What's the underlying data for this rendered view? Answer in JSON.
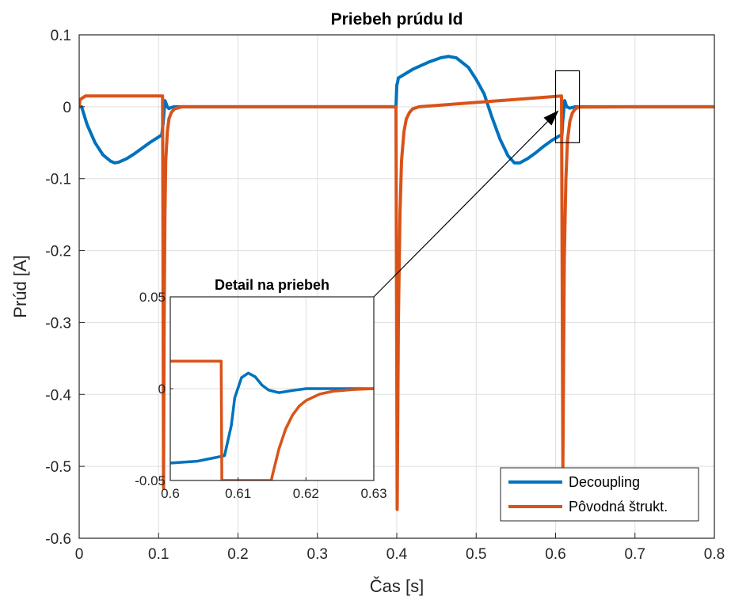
{
  "chart_data": [
    {
      "type": "line",
      "title": "Priebeh prúdu Id",
      "xlabel": "Čas [s]",
      "ylabel": "Prúd [A]",
      "xlim": [
        0,
        0.8
      ],
      "ylim": [
        -0.6,
        0.1
      ],
      "xticks": [
        "0",
        "0.1",
        "0.2",
        "0.3",
        "0.4",
        "0.5",
        "0.6",
        "0.7",
        "0.8"
      ],
      "yticks": [
        "0.1",
        "0",
        "-0.1",
        "-0.2",
        "-0.3",
        "-0.4",
        "-0.5",
        "-0.6"
      ],
      "grid": true,
      "legend_position": "bottom-right",
      "series": [
        {
          "name": "Decoupling",
          "color": "#0072BD",
          "x": [
            0,
            0.003,
            0.01,
            0.02,
            0.03,
            0.04,
            0.045,
            0.05,
            0.06,
            0.07,
            0.08,
            0.09,
            0.1,
            0.104,
            0.106,
            0.108,
            0.111,
            0.113,
            0.116,
            0.12,
            0.2,
            0.3,
            0.399,
            0.4,
            0.401,
            0.402,
            0.405,
            0.42,
            0.44,
            0.455,
            0.465,
            0.475,
            0.49,
            0.5,
            0.51,
            0.52,
            0.53,
            0.54,
            0.548,
            0.555,
            0.565,
            0.575,
            0.585,
            0.595,
            0.604,
            0.608,
            0.609,
            0.6115,
            0.614,
            0.618,
            0.625,
            0.7,
            0.8
          ],
          "y": [
            0,
            0,
            -0.025,
            -0.05,
            -0.067,
            -0.076,
            -0.078,
            -0.077,
            -0.072,
            -0.065,
            -0.057,
            -0.049,
            -0.042,
            -0.039,
            -0.02,
            0.0085,
            0,
            -0.0025,
            -0.001,
            0,
            0,
            0,
            0,
            0.03,
            0.034,
            0.04,
            0.042,
            0.052,
            0.062,
            0.068,
            0.07,
            0.068,
            0.055,
            0.038,
            0.018,
            -0.015,
            -0.045,
            -0.068,
            -0.078,
            -0.078,
            -0.072,
            -0.064,
            -0.055,
            -0.047,
            -0.041,
            -0.039,
            -0.02,
            0.0085,
            0,
            -0.002,
            0,
            0,
            0
          ]
        },
        {
          "name": "Pôvodná štrukt.",
          "color": "#D95319",
          "x": [
            0,
            0.001,
            0.008,
            0.105,
            0.1055,
            0.1062,
            0.107,
            0.108,
            0.109,
            0.111,
            0.113,
            0.116,
            0.12,
            0.13,
            0.399,
            0.3995,
            0.4005,
            0.402,
            0.404,
            0.406,
            0.409,
            0.412,
            0.416,
            0.42,
            0.428,
            0.6075,
            0.6082,
            0.6092,
            0.611,
            0.613,
            0.615,
            0.618,
            0.621,
            0.624,
            0.627,
            0.63,
            0.7,
            0.8
          ],
          "y": [
            0,
            0.01,
            0.015,
            0.015,
            -0.18,
            -0.53,
            -0.3,
            -0.15,
            -0.075,
            -0.035,
            -0.017,
            -0.008,
            -0.003,
            0,
            0,
            -0.2,
            -0.56,
            -0.3,
            -0.15,
            -0.075,
            -0.035,
            -0.017,
            -0.008,
            -0.003,
            0,
            0.015,
            -0.2,
            -0.5,
            -0.21,
            -0.1,
            -0.047,
            -0.02,
            -0.009,
            -0.004,
            -0.0015,
            -0.0005,
            0,
            0
          ]
        }
      ],
      "annotations": [
        {
          "type": "rectangle",
          "x": [
            0.6,
            0.63
          ],
          "y": [
            -0.05,
            0.05
          ]
        },
        {
          "type": "arrow",
          "from": [
            0.545,
            -0.05
          ],
          "to": [
            0.604,
            -0.005
          ]
        }
      ]
    },
    {
      "type": "line",
      "title": "Detail na priebeh",
      "xlim": [
        0.6,
        0.63
      ],
      "ylim": [
        -0.05,
        0.05
      ],
      "xticks": [
        "0.6",
        "0.61",
        "0.62",
        "0.63"
      ],
      "yticks": [
        "0.05",
        "0",
        "-0.05"
      ],
      "grid": true,
      "series": [
        {
          "name": "Decoupling",
          "color": "#0072BD",
          "x": [
            0.6,
            0.604,
            0.608,
            0.609,
            0.6095,
            0.6105,
            0.6115,
            0.6125,
            0.6135,
            0.6145,
            0.616,
            0.618,
            0.62,
            0.63
          ],
          "y": [
            -0.0405,
            -0.0395,
            -0.0365,
            -0.02,
            -0.005,
            0.006,
            0.0085,
            0.0065,
            0.002,
            -0.0008,
            -0.0022,
            -0.001,
            0,
            0
          ]
        },
        {
          "name": "Pôvodná štrukt.",
          "color": "#D95319",
          "x": [
            0.6,
            0.6075,
            0.6076,
            0.6149,
            0.615,
            0.616,
            0.617,
            0.618,
            0.619,
            0.62,
            0.622,
            0.624,
            0.627,
            0.63
          ],
          "y": [
            0.015,
            0.015,
            -0.05,
            -0.05,
            -0.048,
            -0.033,
            -0.022,
            -0.0145,
            -0.0095,
            -0.0065,
            -0.003,
            -0.0014,
            -0.0005,
            0
          ]
        }
      ]
    }
  ]
}
